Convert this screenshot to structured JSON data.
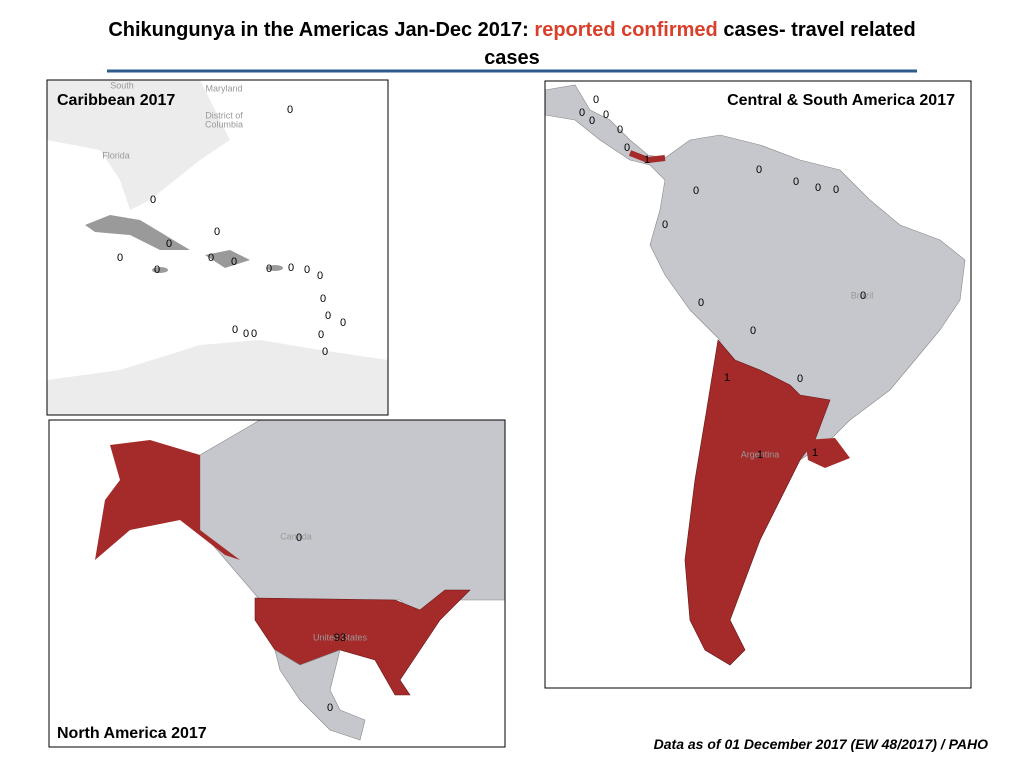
{
  "title": {
    "lead": "Chikungunya in the Americas Jan-Dec 2017:",
    "highlight": "reported confirmed",
    "tail": "cases- travel related",
    "last_line": "cases"
  },
  "panels": [
    {
      "title": "Caribbean 2017",
      "place_labels": [
        "South",
        "Maryland",
        "District of",
        "Columbia",
        "Florida"
      ],
      "case_labels": [
        0,
        0,
        0,
        0,
        0,
        0,
        0,
        0,
        0,
        0,
        0,
        0,
        0,
        0,
        0,
        0,
        0,
        0,
        0,
        0
      ]
    },
    {
      "title": "Central & South America  2017",
      "place_labels": [
        "Brazil",
        "Argentina"
      ],
      "case_labels": [
        0,
        0,
        0,
        0,
        0,
        0,
        1,
        0,
        0,
        0,
        0,
        0,
        0,
        0,
        0,
        0,
        1,
        0,
        1,
        1
      ]
    },
    {
      "title": "North America  2017",
      "place_labels": [
        "Canada",
        "United States"
      ],
      "case_labels": [
        0,
        93,
        0
      ]
    }
  ],
  "footnote": "Data as of 01 December 2017 (EW 48/2017) / PAHO"
}
